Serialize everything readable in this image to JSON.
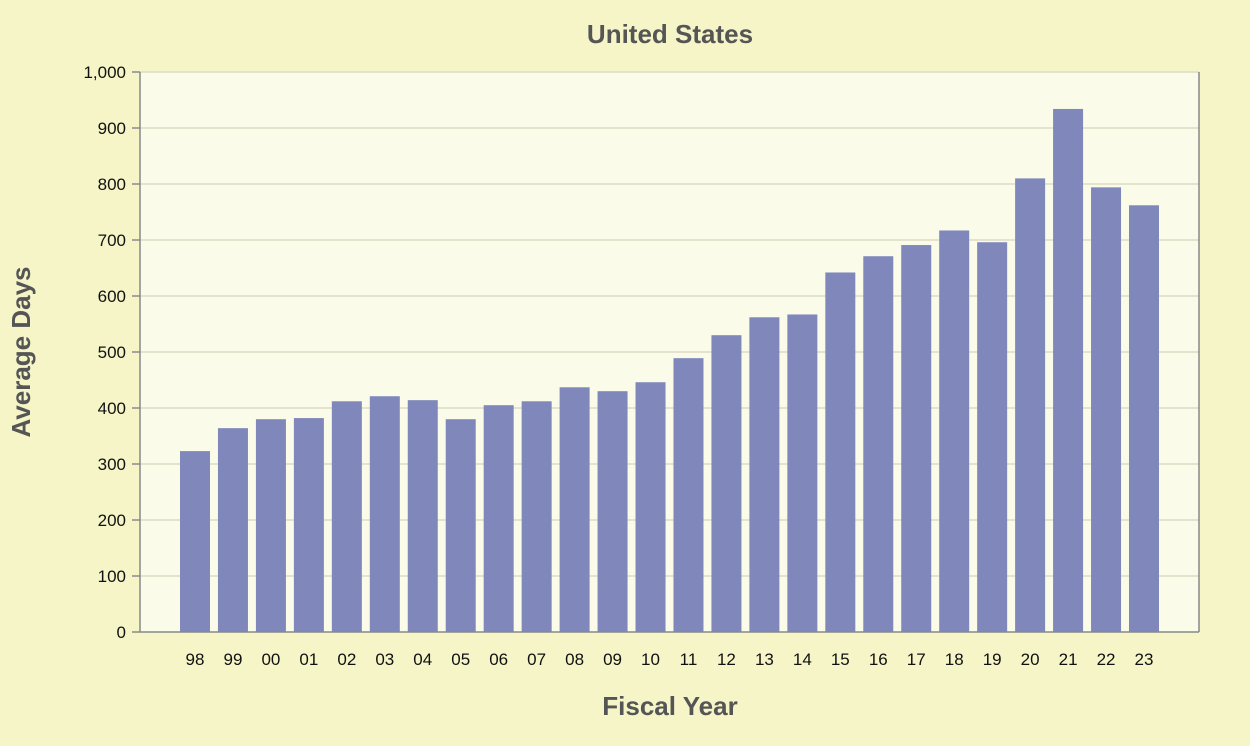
{
  "chart_data": {
    "type": "bar",
    "title": "United States",
    "xlabel": "Fiscal Year",
    "ylabel": "Average Days",
    "categories": [
      "98",
      "99",
      "00",
      "01",
      "02",
      "03",
      "04",
      "05",
      "06",
      "07",
      "08",
      "09",
      "10",
      "11",
      "12",
      "13",
      "14",
      "15",
      "16",
      "17",
      "18",
      "19",
      "20",
      "21",
      "22",
      "23"
    ],
    "values": [
      323,
      364,
      380,
      382,
      412,
      421,
      414,
      380,
      405,
      412,
      437,
      430,
      446,
      489,
      530,
      562,
      567,
      642,
      671,
      691,
      717,
      696,
      810,
      934,
      794,
      762
    ],
    "ylim": [
      0,
      1000
    ],
    "yticks": [
      0,
      100,
      200,
      300,
      400,
      500,
      600,
      700,
      800,
      900,
      1000
    ],
    "ytick_labels": [
      "0",
      "100",
      "200",
      "300",
      "400",
      "500",
      "600",
      "700",
      "800",
      "900",
      "1,000"
    ],
    "grid": true,
    "legend": "none"
  },
  "colors": {
    "page_background": "#f5f5c8",
    "plot_background": "#fbfbea",
    "bar": "#7f87bb",
    "grid": "#dcdcc4",
    "axis": "#888888"
  }
}
